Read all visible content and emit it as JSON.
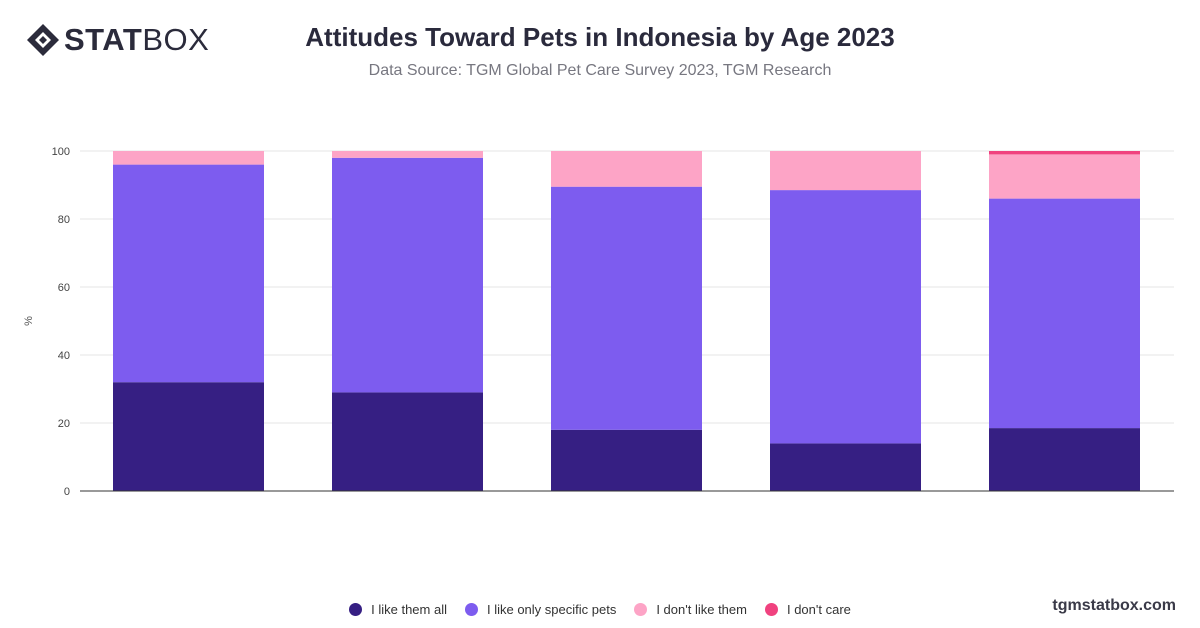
{
  "brand": {
    "logo_bold": "STAT",
    "logo_light": "BOX",
    "logo_icon": "diamond-logo-icon",
    "url": "tgmstatbox.com"
  },
  "header": {
    "title": "Attitudes Toward Pets in Indonesia by Age 2023",
    "subtitle": "Data Source: TGM Global Pet Care Survey 2023, TGM Research"
  },
  "colors": {
    "like_all": "#361f83",
    "like_specific": "#7d5cef",
    "dont_like": "#fda4c6",
    "dont_care": "#f0427f",
    "grid": "#e6e6e6",
    "axis": "#333333"
  },
  "chart_data": {
    "type": "bar",
    "stacked": true,
    "categories": [
      "",
      "",
      "",
      "",
      ""
    ],
    "ylabel": "%",
    "ylim": [
      0,
      100
    ],
    "yticks": [
      0,
      20,
      40,
      60,
      80,
      100
    ],
    "grid": true,
    "legend_position": "bottom",
    "series": [
      {
        "name": "I like them all",
        "color": "#361f83",
        "values": [
          32,
          29,
          18,
          14,
          18.5
        ]
      },
      {
        "name": "I like only specific pets",
        "color": "#7d5cef",
        "values": [
          64,
          69,
          71.5,
          74.5,
          67.5
        ]
      },
      {
        "name": "I don't like them",
        "color": "#fda4c6",
        "values": [
          4,
          2,
          10.5,
          11.5,
          13
        ]
      },
      {
        "name": "I don't care",
        "color": "#f0427f",
        "values": [
          0,
          0,
          0,
          0,
          1
        ]
      }
    ]
  }
}
